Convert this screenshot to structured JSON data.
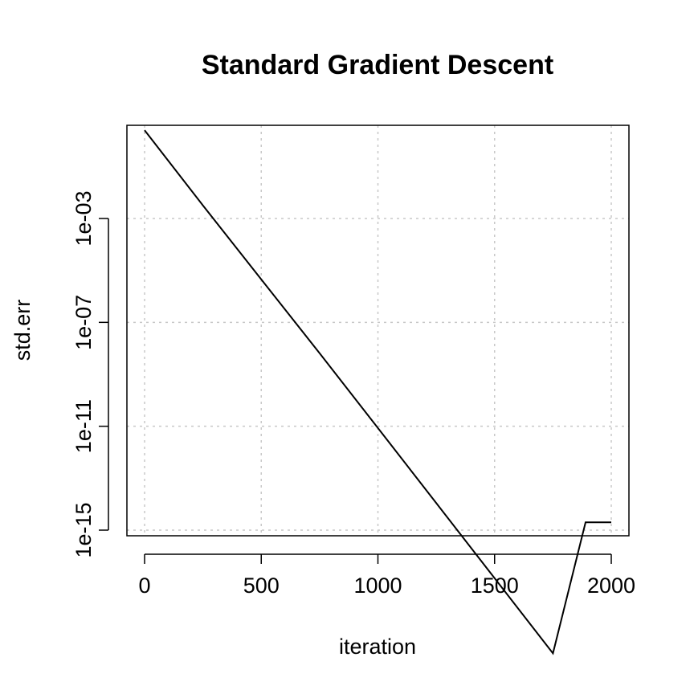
{
  "chart_data": {
    "type": "line",
    "title": "Standard Gradient Descent",
    "xlabel": "iteration",
    "ylabel": "std.err",
    "xlim": [
      -80,
      2080
    ],
    "ylim": [
      1e-16,
      10.0
    ],
    "y_log_scale": true,
    "grid": true,
    "x_ticks": [
      {
        "value": 0,
        "label": "0"
      },
      {
        "value": 500,
        "label": "500"
      },
      {
        "value": 1000,
        "label": "1000"
      },
      {
        "value": 1500,
        "label": "1500"
      },
      {
        "value": 2000,
        "label": "2000"
      }
    ],
    "y_ticks": [
      {
        "value": 0.001,
        "label": "1e-03"
      },
      {
        "value": 1e-07,
        "label": "1e-07"
      },
      {
        "value": 1e-11,
        "label": "1e-11"
      },
      {
        "value": 1e-15,
        "label": "1e-15"
      }
    ],
    "series": [
      {
        "line_color": "#000000",
        "x": [
          0,
          250,
          500,
          750,
          1000,
          1250,
          1500,
          1750,
          1890,
          2000
        ],
        "y": [
          2.5,
          0.0032,
          4.5e-06,
          6.5e-09,
          8.5e-12,
          1.1e-14,
          1.4e-17,
          1.8e-20,
          2e-15,
          2e-15
        ]
      }
    ]
  }
}
